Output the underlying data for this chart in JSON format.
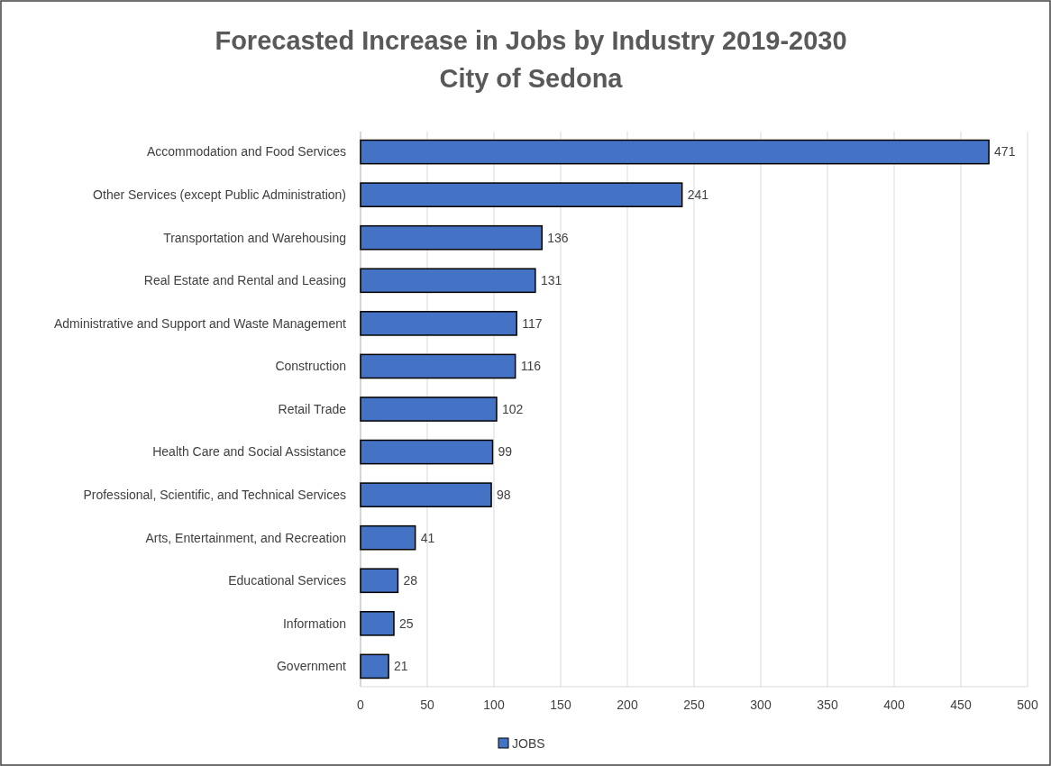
{
  "chart_data": {
    "type": "bar",
    "orientation": "horizontal",
    "title": "Forecasted Increase in Jobs by Industry 2019-2030\nCity of Sedona",
    "categories": [
      "Accommodation and Food Services",
      "Other Services (except Public Administration)",
      "Transportation and Warehousing",
      "Real Estate and Rental and Leasing",
      "Administrative and Support and Waste Management",
      "Construction",
      "Retail Trade",
      "Health Care and Social Assistance",
      "Professional, Scientific, and Technical Services",
      "Arts, Entertainment, and Recreation",
      "Educational Services",
      "Information",
      "Government"
    ],
    "series": [
      {
        "name": "JOBS",
        "color": "#4472c4",
        "values": [
          471,
          241,
          136,
          131,
          117,
          116,
          102,
          99,
          98,
          41,
          28,
          25,
          21
        ]
      }
    ],
    "xlim": [
      0,
      500
    ],
    "xticks": [
      0,
      50,
      100,
      150,
      200,
      250,
      300,
      350,
      400,
      450,
      500
    ],
    "grid": "x",
    "legend": "bottom",
    "data_labels": true
  }
}
